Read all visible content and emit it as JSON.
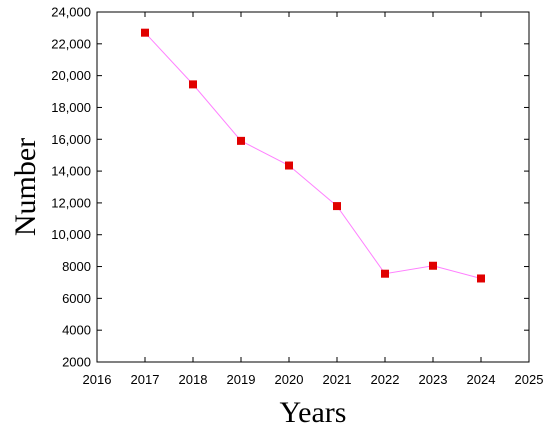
{
  "chart_data": {
    "type": "line",
    "title": "",
    "xlabel": "Years",
    "ylabel": "Number",
    "xlim": [
      2016,
      2025
    ],
    "ylim": [
      2000,
      24000
    ],
    "x_ticks": [
      "2016",
      "2017",
      "2018",
      "2019",
      "2020",
      "2021",
      "2022",
      "2023",
      "2024",
      "2025"
    ],
    "y_ticks": [
      "2000",
      "4000",
      "6000",
      "8000",
      "10,000",
      "12,000",
      "14,000",
      "16,000",
      "18,000",
      "20,000",
      "22,000",
      "24,000"
    ],
    "grid": false,
    "legend": "none",
    "line_color": "#ff80ff",
    "marker_color": "#e00000",
    "marker": "square",
    "series": [
      {
        "x": [
          2017,
          2018,
          2019,
          2020,
          2021,
          2022,
          2023,
          2024
        ],
        "values": [
          22700,
          19450,
          15900,
          14350,
          11800,
          7550,
          8050,
          7250
        ]
      }
    ]
  }
}
